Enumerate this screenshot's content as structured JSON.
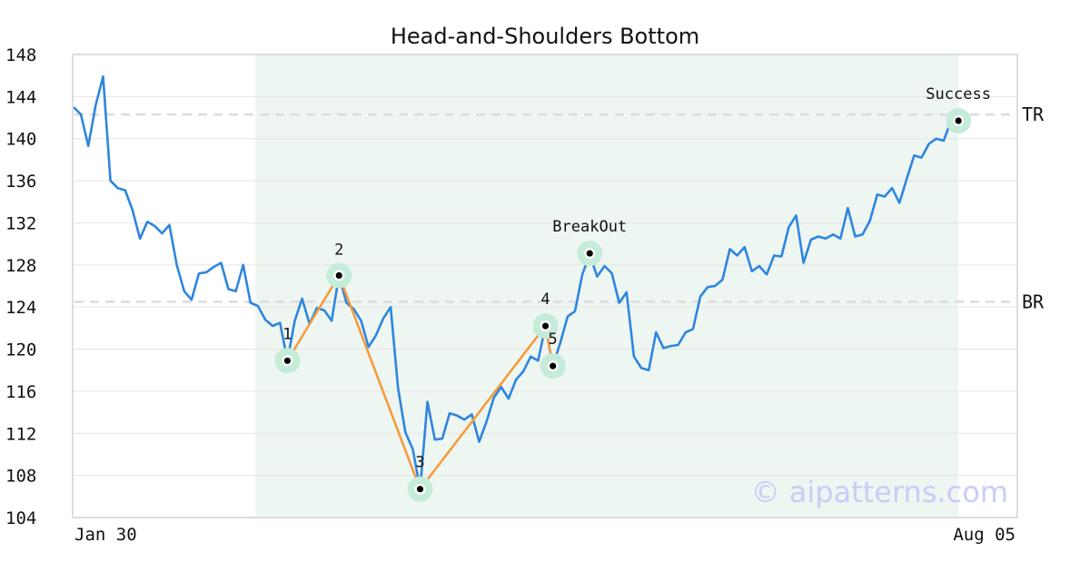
{
  "chart_data": {
    "type": "line",
    "title": "Head-and-Shoulders Bottom",
    "x_tick_labels": [
      "Jan 30",
      "Aug 05"
    ],
    "ylim": [
      104,
      148
    ],
    "y_ticks": [
      104,
      108,
      112,
      116,
      120,
      124,
      128,
      132,
      136,
      140,
      144,
      148
    ],
    "grid": true,
    "price_series": {
      "name": "",
      "color": "#2e86de",
      "values": [
        143.0,
        142.3,
        139.3,
        143.2,
        145.9,
        136.0,
        135.3,
        135.1,
        133.2,
        130.5,
        132.1,
        131.7,
        131.0,
        131.8,
        128.0,
        125.5,
        124.7,
        127.2,
        127.3,
        127.8,
        128.2,
        125.7,
        125.5,
        128.0,
        124.4,
        124.1,
        122.8,
        122.2,
        122.5,
        118.9,
        122.7,
        124.8,
        122.4,
        123.9,
        123.7,
        122.7,
        127.0,
        124.4,
        123.8,
        122.7,
        120.2,
        121.3,
        122.9,
        124.0,
        116.3,
        112.1,
        110.5,
        106.7,
        115.0,
        111.4,
        111.5,
        113.9,
        113.7,
        113.3,
        113.8,
        111.2,
        113.1,
        115.4,
        116.4,
        115.3,
        117.1,
        117.9,
        119.3,
        118.9,
        122.2,
        118.4,
        120.6,
        123.1,
        123.6,
        127.1,
        129.0,
        126.9,
        127.9,
        127.2,
        124.4,
        125.4,
        119.3,
        118.2,
        118.0,
        121.6,
        120.1,
        120.3,
        120.4,
        121.6,
        121.9,
        125.0,
        125.9,
        126.0,
        126.6,
        129.5,
        128.9,
        129.7,
        127.4,
        127.9,
        127.1,
        128.9,
        128.8,
        131.6,
        132.7,
        128.2,
        130.4,
        130.7,
        130.5,
        130.9,
        130.5,
        133.4,
        130.7,
        130.9,
        132.2,
        134.7,
        134.5,
        135.3,
        133.9,
        136.2,
        138.4,
        138.2,
        139.5,
        140.0,
        139.8,
        141.7
      ]
    },
    "pattern_points": [
      {
        "label": "1",
        "index": 29,
        "value": 118.9
      },
      {
        "label": "2",
        "index": 36,
        "value": 127.0
      },
      {
        "label": "3",
        "index": 47,
        "value": 106.7
      },
      {
        "label": "4",
        "index": 64,
        "value": 122.2
      },
      {
        "label": "5",
        "index": 65,
        "value": 118.4
      }
    ],
    "pattern_color": "#f39c3d",
    "breakout": {
      "label": "BreakOut",
      "index": 70,
      "value": 129.1
    },
    "target": {
      "label": "Success",
      "index": 120,
      "value": 141.7
    },
    "levels": [
      {
        "label": "TR",
        "value": 142.3
      },
      {
        "label": "BR",
        "value": 124.5
      }
    ],
    "highlight_range": {
      "start_index": 27,
      "end_index": 120,
      "color": "#eef6f2"
    },
    "marker_halo_color": "#c5ebd9"
  },
  "watermark": "© aipatterns.com"
}
